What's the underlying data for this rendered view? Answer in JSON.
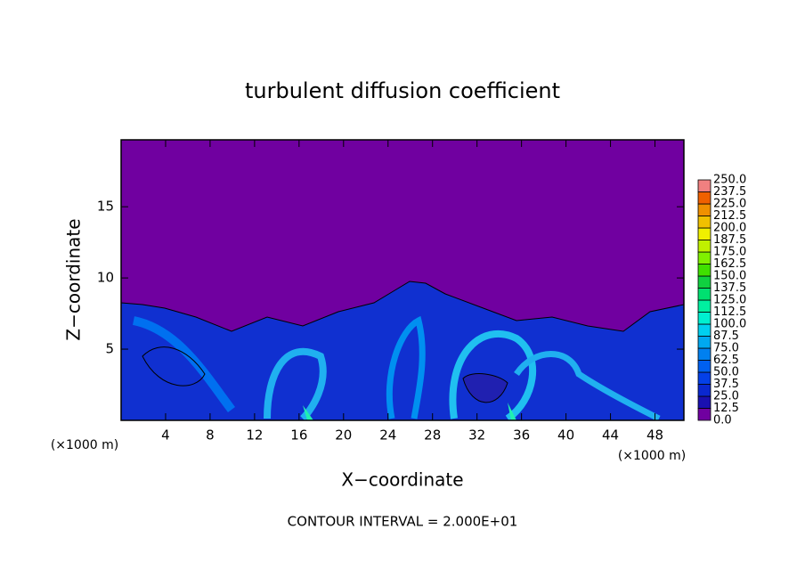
{
  "chart_data": {
    "type": "contour",
    "title": "turbulent diffusion coefficient",
    "x_label": "X−coordinate",
    "y_label": "Z−coordinate",
    "x_unit_left": "(×1000 m)",
    "x_unit_right": "(×1000 m)",
    "footer": "CONTOUR INTERVAL = 2.000E+01",
    "xlim": [
      0,
      50.6
    ],
    "ylim": [
      0,
      19.7
    ],
    "xticks": [
      4,
      8,
      12,
      16,
      20,
      24,
      28,
      32,
      36,
      40,
      44,
      48
    ],
    "yticks": [
      5,
      10,
      15
    ],
    "colorbar": {
      "levels": [
        {
          "value": 0,
          "label": "0.0"
        },
        {
          "value": 12.5,
          "label": "12.5"
        },
        {
          "value": 25,
          "label": "25.0"
        },
        {
          "value": 37.5,
          "label": "37.5"
        },
        {
          "value": 50,
          "label": "50.0"
        },
        {
          "value": 62.5,
          "label": "62.5"
        },
        {
          "value": 75,
          "label": "75.0"
        },
        {
          "value": 87.5,
          "label": "87.5"
        },
        {
          "value": 100,
          "label": "100.0"
        },
        {
          "value": 112.5,
          "label": "112.5"
        },
        {
          "value": 125,
          "label": "125.0"
        },
        {
          "value": 137.5,
          "label": "137.5"
        },
        {
          "value": 150,
          "label": "150.0"
        },
        {
          "value": 162.5,
          "label": "162.5"
        },
        {
          "value": 175,
          "label": "175.0"
        },
        {
          "value": 187.5,
          "label": "187.5"
        },
        {
          "value": 200,
          "label": "200.0"
        },
        {
          "value": 212.5,
          "label": "212.5"
        },
        {
          "value": 225,
          "label": "225.0"
        },
        {
          "value": 237.5,
          "label": "237.5"
        },
        {
          "value": 250,
          "label": "250.0"
        }
      ],
      "colors": [
        "#7000a0",
        "#1a10b0",
        "#0a28d0",
        "#0440e8",
        "#0060f0",
        "#0080f0",
        "#00a8f0",
        "#00d0f0",
        "#00f0d0",
        "#00f0a0",
        "#00e070",
        "#10d040",
        "#40e000",
        "#80f000",
        "#c0f000",
        "#f0f000",
        "#f0c000",
        "#f09000",
        "#f06000",
        "#f08080"
      ]
    }
  }
}
